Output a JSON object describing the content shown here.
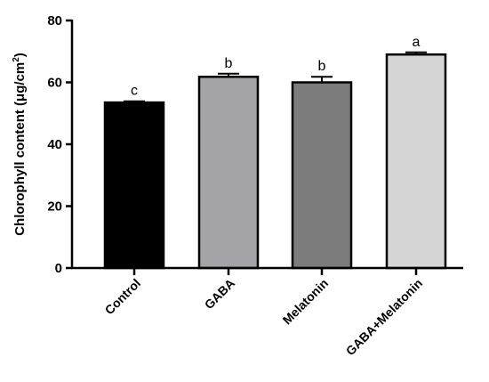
{
  "chart_data": {
    "type": "bar",
    "categories": [
      "Control",
      "GABA",
      "Melatonin",
      "GABA+Melatonin"
    ],
    "values": [
      53.5,
      61.8,
      60.0,
      69.0
    ],
    "errors": [
      0.4,
      1.0,
      1.8,
      0.7
    ],
    "significance": [
      "c",
      "b",
      "b",
      "a"
    ],
    "bar_colors": [
      "#000000",
      "#a3a3a8",
      "#7c7c7c",
      "#d6d6d6"
    ],
    "ylabel": "Chlorophyll content (μg/cm²)",
    "ylabel_main": "Chlorophyll content (μg/cm",
    "ylabel_sup": "2",
    "ylabel_close": ")",
    "ylim": [
      0,
      80
    ],
    "yticks": [
      0,
      20,
      40,
      60,
      80
    ],
    "xlabel": "",
    "grid": false
  }
}
